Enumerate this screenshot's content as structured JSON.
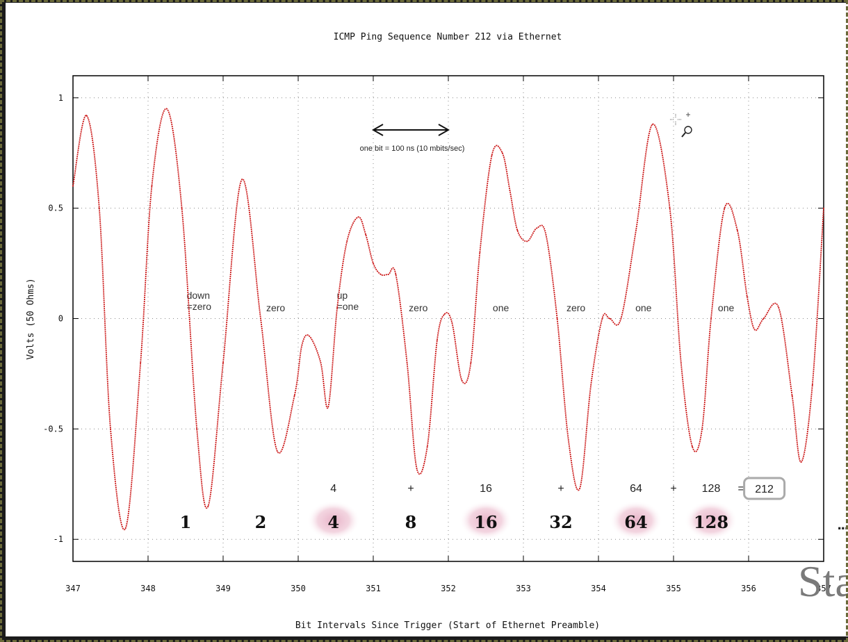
{
  "chart_data": {
    "type": "line",
    "title": "ICMP Ping Sequence Number 212 via Ethernet",
    "xlabel": "Bit Intervals Since Trigger (Start of Ethernet Preamble)",
    "ylabel": "Volts (50 Ohms)",
    "xlim": [
      347,
      357
    ],
    "ylim": [
      -1.1,
      1.1
    ],
    "x_ticks": [
      347,
      348,
      349,
      350,
      351,
      352,
      353,
      354,
      355,
      356,
      357
    ],
    "x_tick_labels": [
      "347",
      "348",
      "349",
      "350",
      "351",
      "352",
      "353",
      "354",
      "355",
      "356",
      "357"
    ],
    "y_ticks": [
      -1,
      -0.5,
      0,
      0.5,
      1
    ],
    "y_tick_labels": [
      "-1",
      "-0.5",
      "0",
      "0.5",
      "1"
    ],
    "grid": true,
    "series_color": "#cc1a1a",
    "series": [
      {
        "x": [
          347.0,
          347.18,
          347.35,
          347.5,
          347.7,
          347.9,
          348.05,
          348.25,
          348.45,
          348.65,
          348.8,
          349.0,
          349.25,
          349.5,
          349.72,
          349.95,
          350.05,
          350.15,
          350.3,
          350.4,
          350.52,
          350.65,
          350.8,
          350.9,
          351.0,
          351.1,
          351.2,
          351.3,
          351.45,
          351.58,
          351.72,
          351.85,
          351.95,
          352.05,
          352.18,
          352.3,
          352.42,
          352.58,
          352.72,
          352.82,
          352.92,
          353.05,
          353.18,
          353.3,
          353.45,
          353.6,
          353.75,
          353.9,
          354.05,
          354.15,
          354.3,
          354.5,
          354.72,
          354.95,
          355.1,
          355.25,
          355.38,
          355.5,
          355.68,
          355.85,
          355.98,
          356.08,
          356.2,
          356.4,
          356.58,
          356.7,
          356.85,
          357.0
        ],
        "y": [
          0.6,
          0.92,
          0.5,
          -0.5,
          -0.95,
          -0.2,
          0.6,
          0.95,
          0.5,
          -0.5,
          -0.85,
          -0.2,
          0.63,
          0.0,
          -0.6,
          -0.35,
          -0.12,
          -0.08,
          -0.2,
          -0.4,
          0.05,
          0.35,
          0.46,
          0.38,
          0.25,
          0.2,
          0.2,
          0.2,
          -0.2,
          -0.68,
          -0.58,
          -0.1,
          0.02,
          -0.02,
          -0.28,
          -0.2,
          0.3,
          0.74,
          0.75,
          0.58,
          0.4,
          0.35,
          0.41,
          0.38,
          0.0,
          -0.55,
          -0.77,
          -0.3,
          0.0,
          0.0,
          0.0,
          0.4,
          0.88,
          0.5,
          -0.2,
          -0.58,
          -0.5,
          0.0,
          0.5,
          0.4,
          0.1,
          -0.05,
          0.0,
          0.05,
          -0.35,
          -0.65,
          -0.3,
          0.5
        ]
      }
    ],
    "annotations": {
      "bit_arrow_label": "one bit = 100 ns (10 mbits/sec)",
      "bit_labels": [
        {
          "lines": [
            "down",
            "=zero"
          ],
          "x": 348.7
        },
        {
          "lines": [
            "zero"
          ],
          "x": 349.7
        },
        {
          "lines": [
            "up",
            "=one"
          ],
          "x": 350.7
        },
        {
          "lines": [
            "zero"
          ],
          "x": 351.6
        },
        {
          "lines": [
            "one"
          ],
          "x": 352.7
        },
        {
          "lines": [
            "zero"
          ],
          "x": 353.7
        },
        {
          "lines": [
            "one"
          ],
          "x": 354.6
        },
        {
          "lines": [
            "one"
          ],
          "x": 355.7
        }
      ],
      "sum_terms": [
        {
          "text": "4",
          "x": 350.47
        },
        {
          "text": "+",
          "x": 351.5
        },
        {
          "text": "16",
          "x": 352.5
        },
        {
          "text": "+",
          "x": 353.5
        },
        {
          "text": "64",
          "x": 354.5
        },
        {
          "text": "+",
          "x": 355.0
        },
        {
          "text": "128",
          "x": 355.5
        },
        {
          "text": "=",
          "x": 355.9
        }
      ],
      "sum_result": "212",
      "place_values": [
        {
          "text": "1",
          "x": 348.5,
          "highlight": false
        },
        {
          "text": "2",
          "x": 349.5,
          "highlight": false
        },
        {
          "text": "4",
          "x": 350.47,
          "highlight": true
        },
        {
          "text": "8",
          "x": 351.5,
          "highlight": false
        },
        {
          "text": "16",
          "x": 352.5,
          "highlight": true
        },
        {
          "text": "32",
          "x": 353.5,
          "highlight": false
        },
        {
          "text": "64",
          "x": 354.5,
          "highlight": true
        },
        {
          "text": "128",
          "x": 355.5,
          "highlight": true
        }
      ]
    }
  },
  "overlay": {
    "ellipsis": "...",
    "partial_text": "Sta"
  },
  "cursor_icon": "zoom-cursor-icon"
}
